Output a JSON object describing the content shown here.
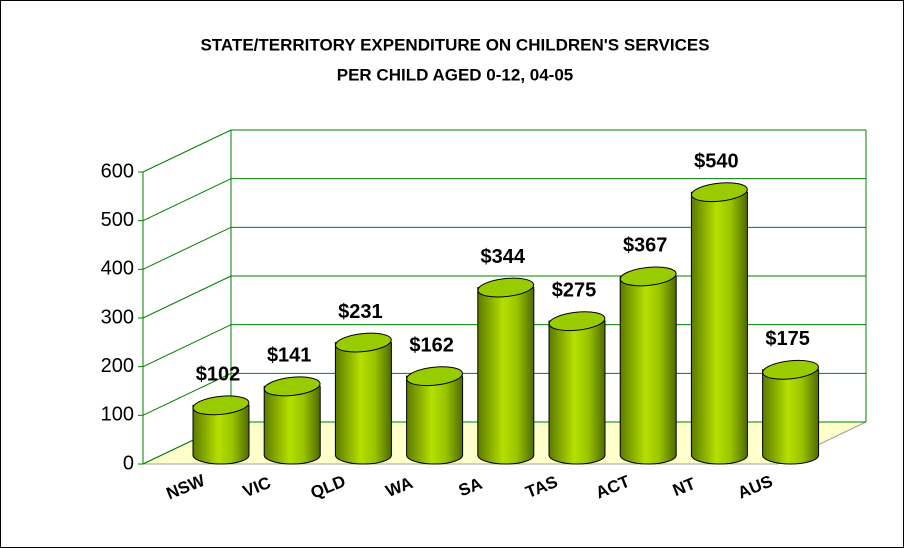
{
  "chart_data": {
    "type": "bar",
    "title": "STATE/TERRITORY EXPENDITURE ON CHILDREN'S SERVICES",
    "subtitle": "PER CHILD AGED 0-12, 04-05",
    "categories": [
      "NSW",
      "VIC",
      "QLD",
      "WA",
      "SA",
      "TAS",
      "ACT",
      "NT",
      "AUS"
    ],
    "values": [
      102,
      141,
      231,
      162,
      344,
      275,
      367,
      540,
      175
    ],
    "value_labels": [
      "$102",
      "$141",
      "$231",
      "$162",
      "$344",
      "$275",
      "$367",
      "$540",
      "$175"
    ],
    "color": "#99cc00",
    "ylim": [
      0,
      600
    ],
    "yticks": [
      0,
      100,
      200,
      300,
      400,
      500,
      600
    ],
    "grid": true
  }
}
